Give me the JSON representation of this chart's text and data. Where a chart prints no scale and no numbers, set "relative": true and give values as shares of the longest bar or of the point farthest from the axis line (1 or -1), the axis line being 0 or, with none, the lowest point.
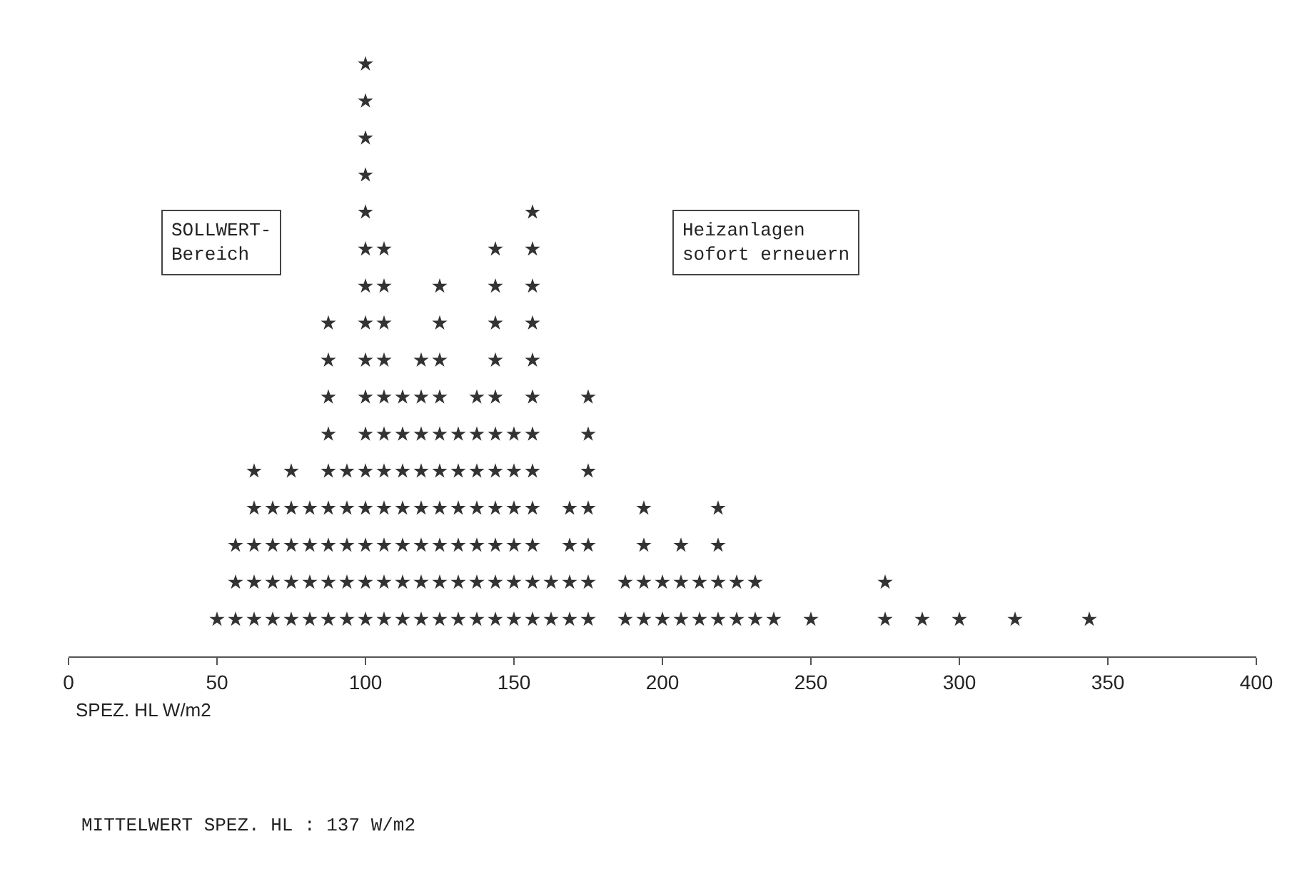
{
  "chart_data": {
    "type": "scatter",
    "relative": true,
    "xlabel": "SPEZ. HL W/m2",
    "xlim": [
      0,
      400
    ],
    "xticks": [
      0,
      50,
      100,
      150,
      200,
      250,
      300,
      350,
      400
    ],
    "marker": "star",
    "grid": false,
    "annotations": [
      "SOLLWERT-\nBereich",
      "Heizanlagen\nsofort erneuern",
      "MITTELWERT SPEZ. HL : 137 W/m2"
    ],
    "series": [
      {
        "color": "#333333",
        "x": [
          50,
          56.25,
          56.25,
          56.25,
          62.5,
          62.5,
          62.5,
          62.5,
          62.5,
          68.75,
          68.75,
          68.75,
          68.75,
          75,
          75,
          75,
          75,
          75,
          81.25,
          81.25,
          81.25,
          81.25,
          87.5,
          87.5,
          87.5,
          87.5,
          87.5,
          87.5,
          87.5,
          87.5,
          87.5,
          93.75,
          93.75,
          93.75,
          93.75,
          93.75,
          100,
          100,
          100,
          100,
          100,
          100,
          100,
          100,
          100,
          100,
          100,
          100,
          100,
          100,
          100,
          100,
          106.25,
          106.25,
          106.25,
          106.25,
          106.25,
          106.25,
          106.25,
          106.25,
          106.25,
          106.25,
          106.25,
          112.5,
          112.5,
          112.5,
          112.5,
          112.5,
          112.5,
          112.5,
          118.75,
          118.75,
          118.75,
          118.75,
          118.75,
          118.75,
          118.75,
          118.75,
          125,
          125,
          125,
          125,
          125,
          125,
          125,
          125,
          125,
          125,
          131.25,
          131.25,
          131.25,
          131.25,
          131.25,
          131.25,
          137.5,
          137.5,
          137.5,
          137.5,
          137.5,
          137.5,
          137.5,
          143.75,
          143.75,
          143.75,
          143.75,
          143.75,
          143.75,
          143.75,
          143.75,
          143.75,
          143.75,
          143.75,
          150,
          150,
          150,
          150,
          150,
          150,
          156.25,
          156.25,
          156.25,
          156.25,
          156.25,
          156.25,
          156.25,
          156.25,
          156.25,
          156.25,
          156.25,
          156.25,
          162.5,
          162.5,
          168.75,
          168.75,
          168.75,
          168.75,
          175,
          175,
          175,
          175,
          175,
          175,
          175,
          187.5,
          187.5,
          193.75,
          193.75,
          193.75,
          193.75,
          200,
          200,
          206.25,
          206.25,
          206.25,
          212.5,
          212.5,
          218.75,
          218.75,
          218.75,
          218.75,
          225,
          225,
          231.25,
          231.25,
          237.5,
          250,
          275,
          275,
          287.5,
          300,
          318.75,
          343.75
        ],
        "values": [
          0.0625,
          0.0625,
          0.125,
          0.1875,
          0.0625,
          0.125,
          0.1875,
          0.25,
          0.3125,
          0.0625,
          0.125,
          0.1875,
          0.25,
          0.0625,
          0.125,
          0.1875,
          0.25,
          0.3125,
          0.0625,
          0.125,
          0.1875,
          0.25,
          0.0625,
          0.125,
          0.1875,
          0.25,
          0.3125,
          0.375,
          0.4375,
          0.5,
          0.5625,
          0.0625,
          0.125,
          0.1875,
          0.25,
          0.3125,
          0.0625,
          0.125,
          0.1875,
          0.25,
          0.3125,
          0.375,
          0.4375,
          0.5,
          0.5625,
          0.625,
          0.6875,
          0.75,
          0.8125,
          0.875,
          0.9375,
          1,
          0.0625,
          0.125,
          0.1875,
          0.25,
          0.3125,
          0.375,
          0.4375,
          0.5,
          0.5625,
          0.625,
          0.6875,
          0.0625,
          0.125,
          0.1875,
          0.25,
          0.3125,
          0.375,
          0.4375,
          0.0625,
          0.125,
          0.1875,
          0.25,
          0.3125,
          0.375,
          0.4375,
          0.5,
          0.0625,
          0.125,
          0.1875,
          0.25,
          0.3125,
          0.375,
          0.4375,
          0.5,
          0.5625,
          0.625,
          0.0625,
          0.125,
          0.1875,
          0.25,
          0.3125,
          0.375,
          0.0625,
          0.125,
          0.1875,
          0.25,
          0.3125,
          0.375,
          0.4375,
          0.0625,
          0.125,
          0.1875,
          0.25,
          0.3125,
          0.375,
          0.4375,
          0.5,
          0.5625,
          0.625,
          0.6875,
          0.0625,
          0.125,
          0.1875,
          0.25,
          0.3125,
          0.375,
          0.0625,
          0.125,
          0.1875,
          0.25,
          0.3125,
          0.375,
          0.4375,
          0.5,
          0.5625,
          0.625,
          0.6875,
          0.75,
          0.0625,
          0.125,
          0.0625,
          0.125,
          0.1875,
          0.25,
          0.0625,
          0.125,
          0.1875,
          0.25,
          0.3125,
          0.375,
          0.4375,
          0.0625,
          0.125,
          0.0625,
          0.125,
          0.1875,
          0.25,
          0.0625,
          0.125,
          0.0625,
          0.125,
          0.1875,
          0.0625,
          0.125,
          0.0625,
          0.125,
          0.1875,
          0.25,
          0.0625,
          0.125,
          0.0625,
          0.125,
          0.0625,
          0.0625,
          0.0625,
          0.125,
          0.0625,
          0.0625,
          0.0625,
          0.0625
        ]
      }
    ]
  }
}
